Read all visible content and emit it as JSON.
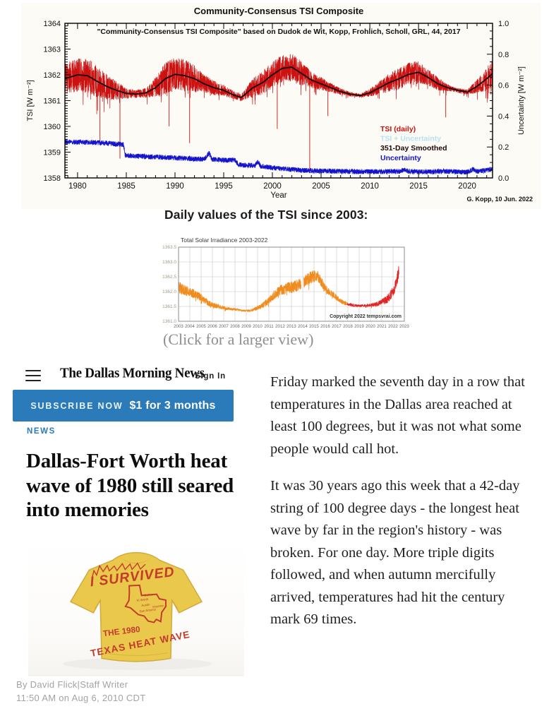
{
  "tsi_section": {
    "heading": "Daily values of the TSI since 2003:",
    "caption": "(Click for a larger view)"
  },
  "chart_data": [
    {
      "id": "tsi_composite",
      "type": "line",
      "title": "Community-Consensus TSI Composite",
      "subtitle": "\"Community-Consensus TSI Composite\" based on Dudok de Wit, Kopp, Frohlich, Scholl, GRL, 44, 2017",
      "xlabel": "Year",
      "ylabel_left": "TSI [W m⁻²]",
      "ylabel_right": "Uncertainty [W m⁻²]",
      "credit": "G. Kopp, 10 Jun. 2022",
      "xlim": [
        1978.7,
        2022.6
      ],
      "ylim_left": [
        1358,
        1364
      ],
      "ylim_right": [
        0.0,
        1.0
      ],
      "xticks": [
        1980,
        1985,
        1990,
        1995,
        2000,
        2005,
        2010,
        2015,
        2020
      ],
      "yticks_left": [
        1358,
        1359,
        1360,
        1361,
        1362,
        1363,
        1364
      ],
      "yticks_right": [
        0.0,
        0.2,
        0.4,
        0.6,
        0.8,
        1.0
      ],
      "grid": false,
      "legend_position": "right-middle",
      "colors": {
        "daily": "#cc1111",
        "plus_uncertainty": "#b5e2ef",
        "smoothed": "#1c0606",
        "uncertainty": "#1414cc",
        "background": "#fcfbf6"
      },
      "legend": [
        {
          "label": "TSI (daily)",
          "color": "#cc1111"
        },
        {
          "label": "TSI + Uncertainty",
          "color": "#b5e2ef"
        },
        {
          "label": "351-Day Smoothed",
          "color": "#1c0606"
        },
        {
          "label": "Uncertainty",
          "color": "#1414cc"
        }
      ],
      "smoothed_tsi": {
        "x": [
          1978.7,
          1980,
          1981,
          1982,
          1983,
          1984,
          1985,
          1986,
          1987,
          1988,
          1989,
          1990,
          1991,
          1992,
          1993,
          1994,
          1995,
          1996,
          1996.8,
          1998,
          1999,
          2000,
          2001,
          2002,
          2003,
          2004,
          2005,
          2006,
          2007,
          2008,
          2009,
          2010,
          2011,
          2012,
          2013,
          2014,
          2015,
          2016,
          2017,
          2018,
          2019,
          2020,
          2021,
          2022,
          2022.6
        ],
        "y": [
          1361.85,
          1362.0,
          1361.97,
          1361.75,
          1361.55,
          1361.4,
          1361.28,
          1361.25,
          1361.3,
          1361.5,
          1361.85,
          1362.02,
          1361.97,
          1361.85,
          1361.65,
          1361.5,
          1361.4,
          1361.22,
          1361.12,
          1361.5,
          1361.7,
          1362.0,
          1362.25,
          1362.3,
          1362.05,
          1361.8,
          1361.65,
          1361.5,
          1361.35,
          1361.25,
          1361.2,
          1361.3,
          1361.5,
          1361.7,
          1361.85,
          1362.02,
          1362.1,
          1361.9,
          1361.65,
          1361.5,
          1361.4,
          1361.33,
          1361.55,
          1361.85,
          1362.05
        ]
      },
      "daily_amplitude": {
        "x": [
          1978.7,
          1980,
          1981,
          1982,
          1983,
          1984,
          1985,
          1986,
          1987,
          1988,
          1989,
          1990,
          1991,
          1992,
          1993,
          1994,
          1995,
          1996,
          1997,
          1998,
          1999,
          2000,
          2001,
          2002,
          2003,
          2004,
          2005,
          2006,
          2007,
          2008,
          2009,
          2010,
          2011,
          2012,
          2013,
          2014,
          2015,
          2016,
          2017,
          2018,
          2019,
          2020,
          2021,
          2022,
          2022.6
        ],
        "a": [
          0.55,
          0.62,
          0.65,
          0.6,
          0.45,
          0.35,
          0.18,
          0.15,
          0.18,
          0.38,
          0.6,
          0.62,
          0.6,
          0.5,
          0.35,
          0.28,
          0.22,
          0.15,
          0.15,
          0.35,
          0.45,
          0.5,
          0.52,
          0.5,
          0.45,
          0.3,
          0.25,
          0.18,
          0.12,
          0.08,
          0.07,
          0.15,
          0.25,
          0.35,
          0.4,
          0.45,
          0.42,
          0.3,
          0.25,
          0.12,
          0.08,
          0.1,
          0.25,
          0.45,
          0.5
        ]
      },
      "spikes": [
        {
          "x": 1982.3,
          "y": 1359.4
        },
        {
          "x": 1984.35,
          "y": 1358.75
        },
        {
          "x": 1989.4,
          "y": 1360.0
        },
        {
          "x": 1991.5,
          "y": 1359.35
        },
        {
          "x": 2000.5,
          "y": 1359.9
        },
        {
          "x": 2003.83,
          "y": 1358.2
        },
        {
          "x": 2005.7,
          "y": 1360.4
        },
        {
          "x": 2017.8,
          "y": 1360.35
        }
      ],
      "uncertainty_right_axis": {
        "x": [
          1978.7,
          1983,
          1984.7,
          1984.9,
          1988,
          1990,
          1993,
          1993.5,
          1993.8,
          1995,
          1996.2,
          1996.5,
          1998.2,
          1998.5,
          1998.8,
          1999.5,
          2000,
          2002,
          2003,
          2005,
          2008,
          2010,
          2013,
          2013.6,
          2014,
          2016,
          2018,
          2020,
          2020.6,
          2021,
          2022,
          2022.6
        ],
        "u": [
          0.235,
          0.225,
          0.215,
          0.145,
          0.135,
          0.13,
          0.12,
          0.16,
          0.12,
          0.115,
          0.115,
          0.085,
          0.08,
          0.105,
          0.075,
          0.07,
          0.065,
          0.055,
          0.05,
          0.045,
          0.042,
          0.04,
          0.042,
          0.055,
          0.042,
          0.04,
          0.042,
          0.038,
          0.055,
          0.042,
          0.05,
          0.055
        ]
      }
    },
    {
      "id": "tsi_2003_2022",
      "type": "line",
      "title": "Total Solar Irradiance 2003-2022",
      "credit": "Copyright 2022 tempsvrai.com",
      "xlim": [
        2003,
        2023
      ],
      "ylim": [
        1361.0,
        1363.5
      ],
      "xticks": [
        2003,
        2004,
        2005,
        2006,
        2007,
        2008,
        2009,
        2010,
        2011,
        2012,
        2013,
        2014,
        2015,
        2016,
        2017,
        2018,
        2019,
        2020,
        2021,
        2022,
        2023
      ],
      "yticks": [
        1361.0,
        1361.5,
        1362.0,
        1362.5,
        1363.0,
        1363.5
      ],
      "grid": true,
      "colors": {
        "early": "#f08c1e",
        "recent": "#e02424",
        "grid": "#c4c4c4",
        "frame": "#8c8c8c"
      },
      "color_switch_x": 2017.9,
      "gaps": [
        [
          2013.85,
          2014.08
        ]
      ],
      "tsi": {
        "x": [
          2003,
          2003.5,
          2004,
          2004.5,
          2005,
          2005.5,
          2006,
          2006.5,
          2007,
          2007.5,
          2008,
          2008.5,
          2009,
          2009.5,
          2010,
          2010.5,
          2011,
          2011.5,
          2012,
          2012.5,
          2013,
          2013.5,
          2014,
          2014.5,
          2015,
          2015.3,
          2015.6,
          2016,
          2016.5,
          2017,
          2017.5,
          2018,
          2018.5,
          2019,
          2019.5,
          2020,
          2020.5,
          2021,
          2021.5,
          2022,
          2022.2,
          2022.4,
          2022.5
        ],
        "y": [
          1362.15,
          1362.05,
          1362.0,
          1361.9,
          1361.8,
          1361.65,
          1361.55,
          1361.5,
          1361.45,
          1361.42,
          1361.4,
          1361.37,
          1361.35,
          1361.37,
          1361.45,
          1361.55,
          1361.7,
          1361.9,
          1362.05,
          1362.1,
          1362.15,
          1362.2,
          1362.3,
          1362.45,
          1362.5,
          1362.55,
          1362.35,
          1362.1,
          1361.95,
          1361.8,
          1361.65,
          1361.58,
          1361.53,
          1361.52,
          1361.53,
          1361.55,
          1361.57,
          1361.65,
          1361.75,
          1362.0,
          1362.2,
          1362.5,
          1362.7
        ]
      },
      "amplitude": {
        "x": [
          2003,
          2004,
          2005,
          2006,
          2007,
          2008,
          2009,
          2010,
          2011,
          2012,
          2013,
          2014,
          2015,
          2016,
          2017,
          2018,
          2019,
          2020,
          2021,
          2022,
          2022.5
        ],
        "a": [
          0.2,
          0.16,
          0.13,
          0.09,
          0.06,
          0.04,
          0.03,
          0.07,
          0.13,
          0.18,
          0.2,
          0.2,
          0.22,
          0.13,
          0.1,
          0.05,
          0.04,
          0.05,
          0.1,
          0.18,
          0.22
        ]
      }
    }
  ],
  "article": {
    "masthead": "The Dallas Morning News",
    "sign_in": "Sign In",
    "subscribe_cta": "SUBSCRIBE NOW",
    "subscribe_offer": "$1 for 3 months",
    "subscribe_bg": "#2b7ab9",
    "accent_blue": "#2b7ab9",
    "section_label": "NEWS",
    "headline": "Dallas-Fort Worth heat wave of 1980 still seared into memories",
    "byline": "By David Flick|Staff Writer",
    "dateline": "11:50 AM on Aug 6, 2010 CDT",
    "tshirt": {
      "top_text": "I SURVIVED",
      "mid_text": "THE 1980",
      "bottom_text": "TEXAS HEAT WAVE",
      "shirt_color": "#eac84b",
      "print_color": "#c23b2b"
    },
    "paragraphs": [
      "Friday marked the seventh day in a row that temperatures in the Dallas area reached at least 100 degrees, but it was not what some people would call hot.",
      "It was 30 years ago this week that a 42-day string of 100 degree days - the longest heat wave by far in the region's history - was broken. For one day. More triple digits followed, and when autumn mercifully arrived, temperatures had hit the century mark 69 times."
    ]
  }
}
